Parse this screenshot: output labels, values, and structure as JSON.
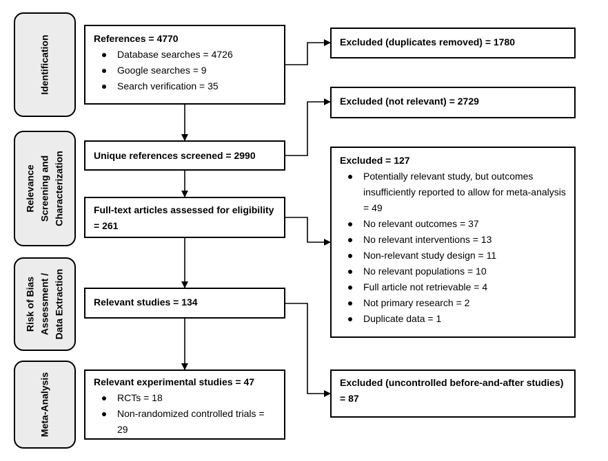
{
  "phases": {
    "identification": "Identification",
    "relevance": [
      "Relevance",
      "Screening and",
      "Characterization"
    ],
    "risk_of_bias": [
      "Risk of Bias",
      "Assessment /",
      "Data Extraction"
    ],
    "meta_analysis": "Meta-Analysis"
  },
  "boxes": {
    "references": {
      "title": "References = 4770",
      "items": [
        "Database searches = 4726",
        "Google searches = 9",
        "Search verification = 35"
      ]
    },
    "excluded_duplicates": {
      "title": "Excluded (duplicates removed) = 1780"
    },
    "unique_screened": {
      "title": "Unique references screened = 2990"
    },
    "excluded_not_relevant": {
      "title": "Excluded (not relevant) = 2729"
    },
    "fulltext": {
      "title": "Full-text articles assessed for eligibility = 261"
    },
    "excluded_127": {
      "title": "Excluded = 127",
      "items": [
        "Potentially relevant study, but outcomes insufficiently reported to allow for meta-analysis = 49",
        "No relevant outcomes = 37",
        "No relevant interventions = 13",
        "Non-relevant study design = 11",
        "No relevant populations = 10",
        "Full article not retrievable = 4",
        "Not primary research = 2",
        "Duplicate data = 1"
      ]
    },
    "relevant_studies": {
      "title": "Relevant studies = 134"
    },
    "relevant_experimental": {
      "title": "Relevant experimental studies = 47",
      "items": [
        "RCTs = 18",
        "Non-randomized controlled trials = 29"
      ]
    },
    "excluded_uncontrolled": {
      "title": "Excluded (uncontrolled before-and-after studies) = 87"
    }
  }
}
